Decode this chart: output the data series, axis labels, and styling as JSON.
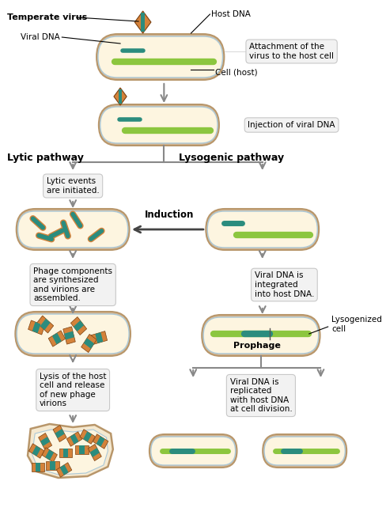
{
  "background_color": "#ffffff",
  "cell_fill_outer": "#d4b896",
  "cell_fill_inner": "#f5e9d0",
  "cell_fill_glow": "#fdf5e0",
  "cell_edge_outer": "#b8966a",
  "cell_edge_inner": "#c4b8a0",
  "dna_long_color": "#8cc63f",
  "dna_short_color": "#2b8c7e",
  "virus_body_color": "#d4823a",
  "virus_accent_color": "#2b8c7e",
  "arrow_color": "#888888",
  "textbox_fill": "#f2f2f2",
  "textbox_edge": "#c8c8c8",
  "labels": {
    "temperate_virus": "Temperate virus",
    "viral_dna": "Viral DNA",
    "host_dna": "Host DNA",
    "cell_host": "Cell (host)",
    "attachment": "Attachment of the\nvirus to the host cell",
    "injection": "Injection of viral DNA",
    "lytic_pathway": "Lytic pathway",
    "lysogenic_pathway": "Lysogenic pathway",
    "lytic_events": "Lytic events\nare initiated.",
    "induction": "Induction",
    "phage_components": "Phage components\nare synthesized\nand virions are\nassembled.",
    "lysis": "Lysis of the host\ncell and release\nof new phage\nvirions",
    "viral_dna_integrated": "Viral DNA is\nintegrated\ninto host DNA.",
    "lysogenized_cell": "Lysogenized\ncell",
    "prophage": "Prophage",
    "viral_dna_replicated": "Viral DNA is\nreplicated\nwith host DNA\nat cell division."
  }
}
